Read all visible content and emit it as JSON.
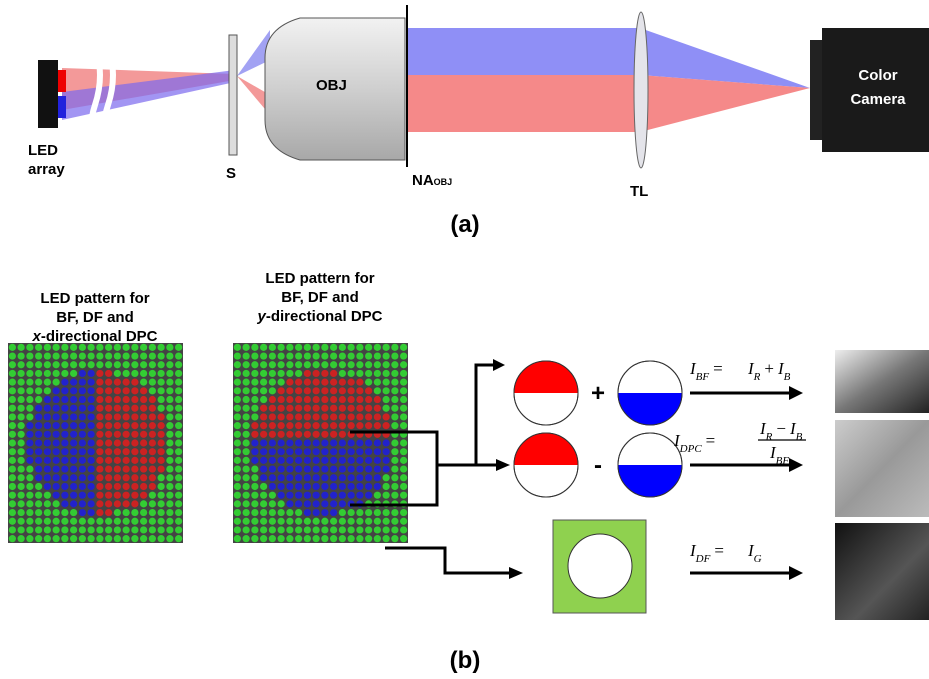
{
  "panel_a": {
    "label": "(a)",
    "led_array": [
      "LED",
      "array"
    ],
    "sample": "S",
    "objective": "OBJ",
    "aperture": {
      "main": "NA",
      "sub": "OBJ"
    },
    "tube_lens": "TL",
    "camera": [
      "Color",
      "Camera"
    ]
  },
  "panel_b": {
    "label": "(b)",
    "patterns": [
      {
        "lines": [
          "LED pattern for",
          "BF, DF and"
        ],
        "axis": "x",
        "suffix": "-directional DPC"
      },
      {
        "lines": [
          "LED pattern for",
          "BF, DF and"
        ],
        "axis": "y",
        "suffix": "-directional DPC"
      }
    ],
    "operators": [
      "+",
      "-"
    ],
    "equations": [
      {
        "lhs": [
          {
            "t": "I",
            "sub": "BF"
          },
          {
            "t": "="
          }
        ],
        "rhs": [
          {
            "t": "I",
            "sub": "R"
          },
          {
            "t": "+"
          },
          {
            "t": "I",
            "sub": "B"
          }
        ]
      },
      {
        "lhs": [
          {
            "t": "I",
            "sub": "DPC"
          },
          {
            "t": "="
          }
        ],
        "numerator": [
          {
            "t": "I",
            "sub": "R"
          },
          {
            "t": "−"
          },
          {
            "t": "I",
            "sub": "B"
          }
        ],
        "denominator": [
          {
            "t": "I",
            "sub": "BF"
          }
        ]
      },
      {
        "lhs": [
          {
            "t": "I",
            "sub": "DF"
          },
          {
            "t": "="
          }
        ],
        "rhs": [
          {
            "t": "I",
            "sub": "G"
          }
        ]
      }
    ]
  }
}
